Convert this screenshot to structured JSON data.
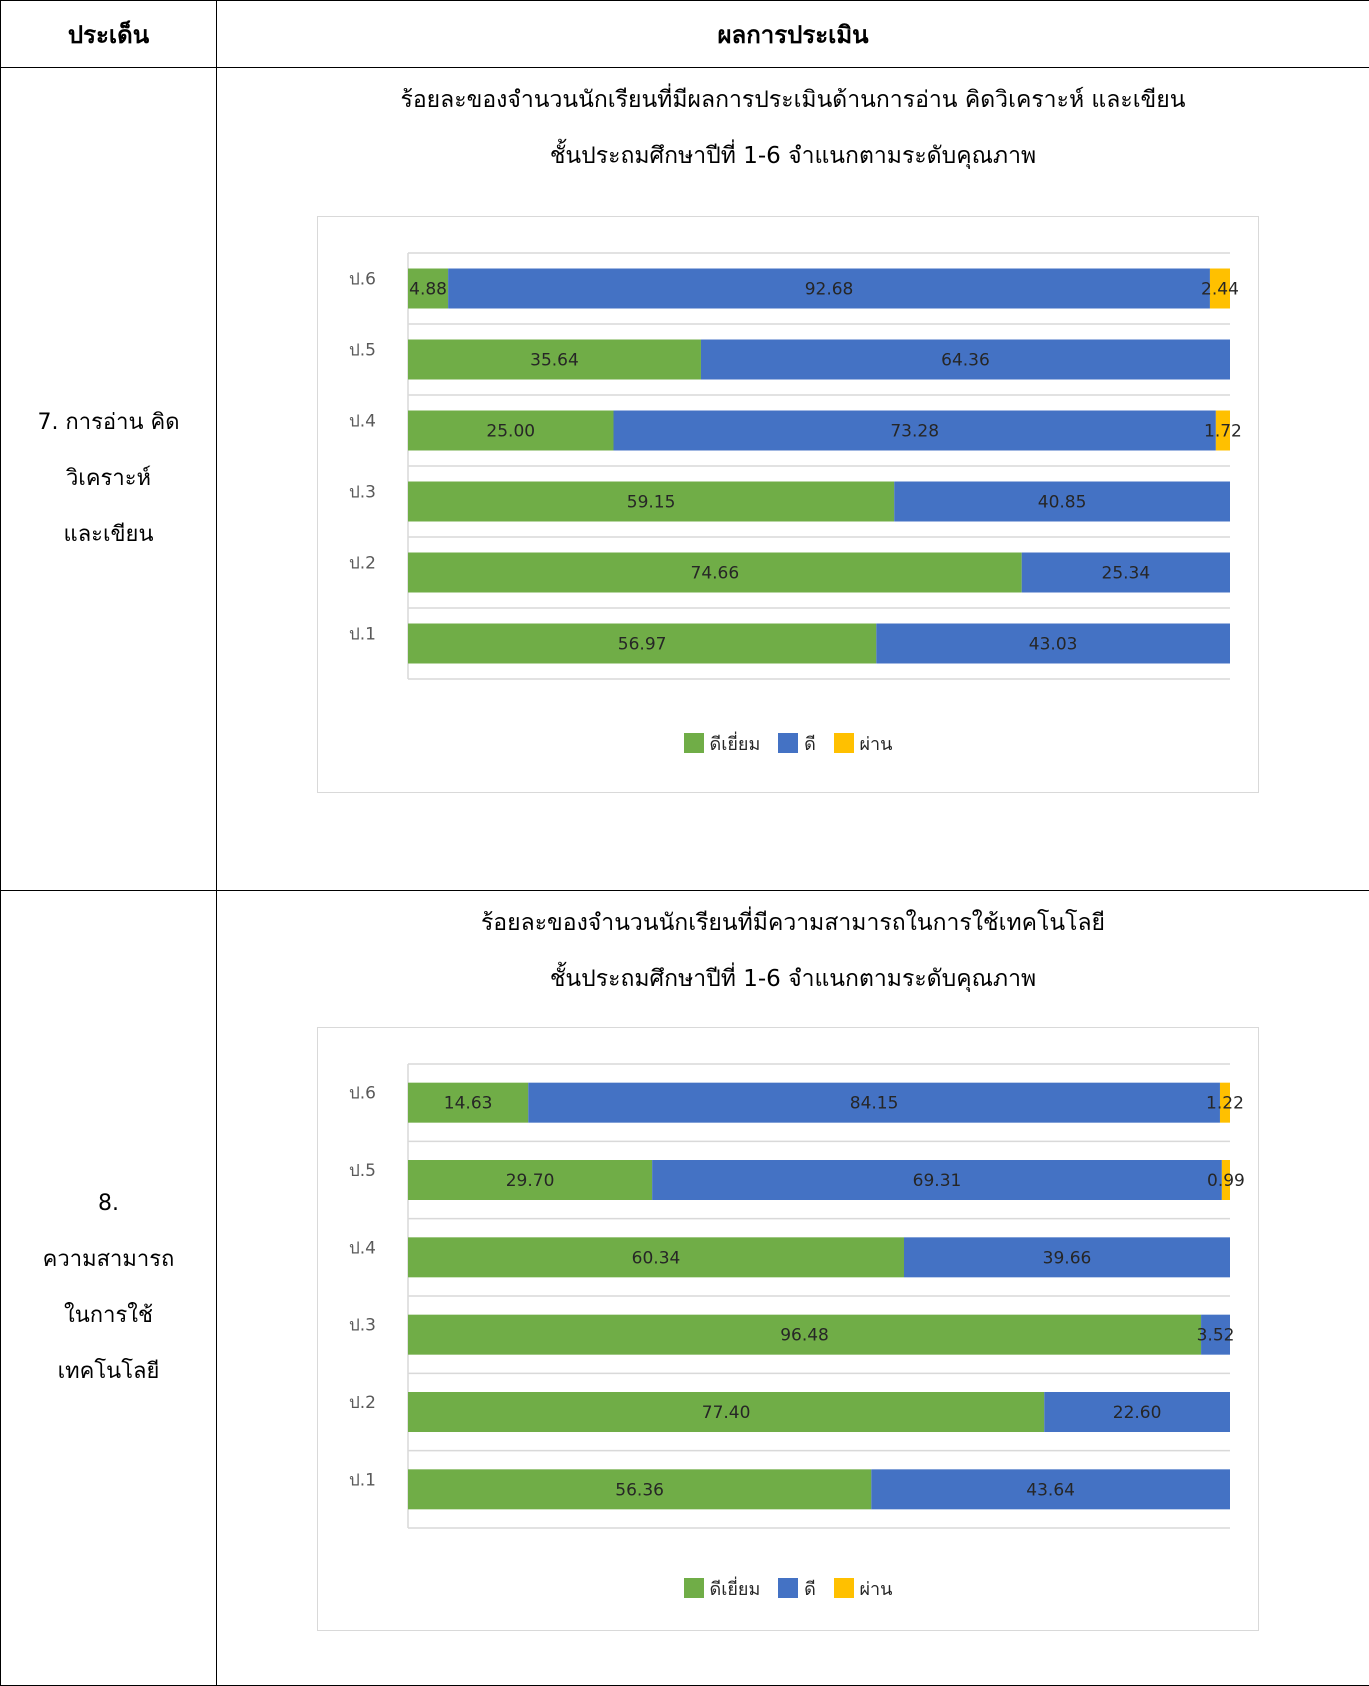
{
  "header": {
    "topic_col": "ประเด็น",
    "result_col": "ผลการประเมิน"
  },
  "colors": {
    "excellent": "#70ad47",
    "good": "#4472c4",
    "pass": "#ffc000"
  },
  "rows": [
    {
      "topic_lines": [
        "7. การอ่าน คิด",
        "วิเคราะห์",
        "และเขียน"
      ],
      "title_lines": [
        "ร้อยละของจำนวนนักเรียนที่มีผลการประเมินด้านการอ่าน คิดวิเคราะห์ และเขียน",
        "ชั้นประถมศึกษาปีที่ 1-6 จำแนกตามระดับคุณภาพ"
      ],
      "legend": [
        "ดีเยี่ยม",
        "ดี",
        "ผ่าน"
      ]
    },
    {
      "topic_lines": [
        "8.",
        "ความสามารถ",
        "ในการใช้",
        "เทคโนโลยี"
      ],
      "title_lines": [
        "ร้อยละของจำนวนนักเรียนที่มีความสามารถในการใช้เทคโนโลยี",
        "ชั้นประถมศึกษาปีที่ 1-6  จำแนกตามระดับคุณภาพ"
      ],
      "legend": [
        "ดีเยี่ยม",
        "ดี",
        "ผ่าน"
      ]
    }
  ],
  "chart_data": [
    {
      "type": "bar",
      "orientation": "horizontal",
      "stacked": true,
      "categories": [
        "ป.6",
        "ป.5",
        "ป.4",
        "ป.3",
        "ป.2",
        "ป.1"
      ],
      "series": [
        {
          "name": "ดีเยี่ยม",
          "values": [
            4.88,
            35.64,
            25.0,
            59.15,
            74.66,
            56.97
          ],
          "labels": [
            "4.88",
            "35.64",
            "25.00",
            "59.15",
            "74.66",
            "56.97"
          ]
        },
        {
          "name": "ดี",
          "values": [
            92.68,
            64.36,
            73.28,
            40.85,
            25.34,
            43.03
          ],
          "labels": [
            "92.68",
            "64.36",
            "73.28",
            "40.85",
            "25.34",
            "43.03"
          ]
        },
        {
          "name": "ผ่าน",
          "values": [
            2.44,
            0,
            1.72,
            0,
            0,
            0
          ],
          "labels": [
            "2.44",
            "",
            "1.72",
            "",
            "",
            ""
          ]
        }
      ],
      "xlim": [
        0,
        100
      ],
      "grid": true,
      "legend_position": "bottom"
    },
    {
      "type": "bar",
      "orientation": "horizontal",
      "stacked": true,
      "categories": [
        "ป.6",
        "ป.5",
        "ป.4",
        "ป.3",
        "ป.2",
        "ป.1"
      ],
      "series": [
        {
          "name": "ดีเยี่ยม",
          "values": [
            14.63,
            29.7,
            60.34,
            96.48,
            77.4,
            56.36
          ],
          "labels": [
            "14.63",
            "29.70",
            "60.34",
            "96.48",
            "77.40",
            "56.36"
          ]
        },
        {
          "name": "ดี",
          "values": [
            84.15,
            69.31,
            39.66,
            3.52,
            22.6,
            43.64
          ],
          "labels": [
            "84.15",
            "69.31",
            "39.66",
            "3.52",
            "22.60",
            "43.64"
          ]
        },
        {
          "name": "ผ่าน",
          "values": [
            1.22,
            0.99,
            0,
            0,
            0,
            0
          ],
          "labels": [
            "1.22",
            "0.99",
            "",
            "",
            "",
            ""
          ]
        }
      ],
      "xlim": [
        0,
        100
      ],
      "grid": true,
      "legend_position": "bottom"
    }
  ]
}
